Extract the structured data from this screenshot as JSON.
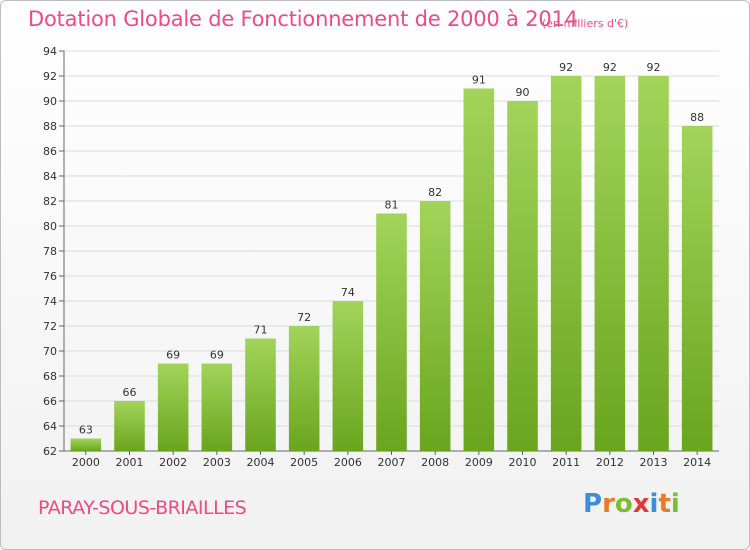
{
  "chart_data": {
    "type": "bar",
    "title": "Dotation Globale de Fonctionnement de 2000 à 2014",
    "subtitle": "(en milliers d'€)",
    "categories": [
      "2000",
      "2001",
      "2002",
      "2003",
      "2004",
      "2005",
      "2006",
      "2007",
      "2008",
      "2009",
      "2010",
      "2011",
      "2012",
      "2013",
      "2014"
    ],
    "values": [
      63,
      66,
      69,
      69,
      71,
      72,
      74,
      81,
      82,
      91,
      90,
      92,
      92,
      92,
      88
    ],
    "ylim": [
      62,
      94
    ],
    "yticks": [
      62,
      64,
      66,
      68,
      70,
      72,
      74,
      76,
      78,
      80,
      82,
      84,
      86,
      88,
      90,
      92,
      94
    ],
    "xlabel": "",
    "ylabel": "",
    "grid": true
  },
  "footer": {
    "place": "PARAY-SOUS-BRIAILLES",
    "logo_letters": [
      "P",
      "r",
      "o",
      "x",
      "i",
      "t",
      "i"
    ],
    "logo_colors": [
      "#3a8fd6",
      "#e87a2a",
      "#7cbf2e",
      "#e23a3a",
      "#3a8fd6",
      "#e87a2a",
      "#7cbf2e"
    ]
  },
  "colors": {
    "title": "#ee4a83",
    "bar_light": "#a2d45a",
    "bar_dark": "#6aa51e",
    "grid": "#dcdcdc"
  }
}
